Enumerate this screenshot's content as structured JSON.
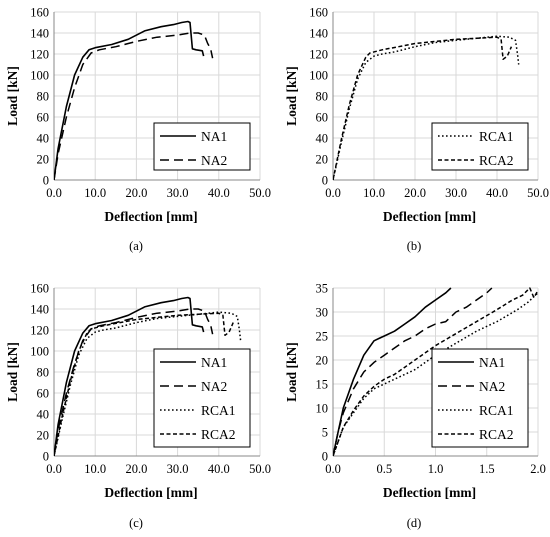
{
  "chart_data": [
    {
      "type": "line",
      "caption": "(a)",
      "xlabel": "Deflection [mm]",
      "ylabel": "Load [kN]",
      "xlim": [
        0,
        50
      ],
      "ylim": [
        0,
        160
      ],
      "xticks": [
        "0.0",
        "10.0",
        "20.0",
        "30.0",
        "40.0",
        "50.0"
      ],
      "yticks": [
        "0",
        "20",
        "40",
        "60",
        "80",
        "100",
        "120",
        "140",
        "160"
      ],
      "legend": "bottom-right",
      "series": [
        {
          "name": "NA1",
          "style": "solid",
          "x": [
            0,
            1,
            3,
            5,
            7,
            8.5,
            10,
            14,
            18,
            22,
            26,
            29,
            31,
            32.5,
            33,
            33.6,
            34.5,
            36,
            36.3
          ],
          "y": [
            0,
            30,
            70,
            100,
            117,
            124,
            126,
            129,
            134,
            142,
            146,
            148,
            150,
            151,
            150,
            125,
            124,
            123,
            118
          ]
        },
        {
          "name": "NA2",
          "style": "dashed",
          "x": [
            0,
            1,
            3,
            5,
            7,
            9,
            11,
            15,
            20,
            25,
            30,
            33,
            35,
            36.5,
            37.3,
            38,
            38.5
          ],
          "y": [
            0,
            25,
            60,
            88,
            110,
            121,
            124,
            127,
            132,
            136,
            138,
            140,
            140,
            138,
            130,
            125,
            116
          ]
        }
      ]
    },
    {
      "type": "line",
      "caption": "(b)",
      "xlabel": "Deflection [mm]",
      "ylabel": "Load [kN]",
      "xlim": [
        0,
        50
      ],
      "ylim": [
        0,
        160
      ],
      "xticks": [
        "0.0",
        "10.0",
        "20.0",
        "30.0",
        "40.0",
        "50.0"
      ],
      "yticks": [
        "0",
        "20",
        "40",
        "60",
        "80",
        "100",
        "120",
        "140",
        "160"
      ],
      "legend": "bottom-right",
      "series": [
        {
          "name": "RCA1",
          "style": "dotted",
          "x": [
            0,
            2,
            4,
            6,
            8,
            10,
            12,
            15,
            20,
            25,
            30,
            35,
            40,
            43,
            44.5,
            45,
            45.3
          ],
          "y": [
            0,
            35,
            68,
            96,
            112,
            118,
            120,
            122,
            127,
            131,
            133,
            135,
            137,
            136,
            133,
            120,
            110
          ]
        },
        {
          "name": "RCA2",
          "style": "short-dashed",
          "x": [
            0,
            2,
            4,
            6,
            8,
            9,
            12,
            16,
            20,
            25,
            30,
            35,
            40,
            41,
            41.5,
            42.5,
            43.5
          ],
          "y": [
            0,
            38,
            72,
            100,
            117,
            121,
            124,
            127,
            130,
            132,
            134,
            135,
            136,
            134,
            115,
            118,
            127
          ]
        }
      ]
    },
    {
      "type": "line",
      "caption": "(c)",
      "xlabel": "Deflection [mm]",
      "ylabel": "Load [kN]",
      "xlim": [
        0,
        50
      ],
      "ylim": [
        0,
        160
      ],
      "xticks": [
        "0.0",
        "10.0",
        "20.0",
        "30.0",
        "40.0",
        "50.0"
      ],
      "yticks": [
        "0",
        "20",
        "40",
        "60",
        "80",
        "100",
        "120",
        "140",
        "160"
      ],
      "legend": "bottom-right",
      "series": [
        {
          "name": "NA1",
          "style": "solid",
          "x": [
            0,
            1,
            3,
            5,
            7,
            8.5,
            10,
            14,
            18,
            22,
            26,
            29,
            31,
            32.5,
            33,
            33.6,
            34.5,
            36,
            36.3
          ],
          "y": [
            0,
            30,
            70,
            100,
            117,
            124,
            126,
            129,
            134,
            142,
            146,
            148,
            150,
            151,
            150,
            125,
            124,
            123,
            118
          ]
        },
        {
          "name": "NA2",
          "style": "dashed",
          "x": [
            0,
            1,
            3,
            5,
            7,
            9,
            11,
            15,
            20,
            25,
            30,
            33,
            35,
            36.5,
            37.3,
            38,
            38.5
          ],
          "y": [
            0,
            25,
            60,
            88,
            110,
            121,
            124,
            127,
            132,
            136,
            138,
            140,
            140,
            138,
            130,
            125,
            116
          ]
        },
        {
          "name": "RCA1",
          "style": "dotted",
          "x": [
            0,
            2,
            4,
            6,
            8,
            10,
            12,
            15,
            20,
            25,
            30,
            35,
            40,
            43,
            44.5,
            45,
            45.3
          ],
          "y": [
            0,
            35,
            68,
            96,
            112,
            118,
            120,
            122,
            127,
            131,
            133,
            135,
            137,
            136,
            133,
            120,
            110
          ]
        },
        {
          "name": "RCA2",
          "style": "short-dashed",
          "x": [
            0,
            2,
            4,
            6,
            8,
            9,
            12,
            16,
            20,
            25,
            30,
            35,
            40,
            41,
            41.5,
            42.5,
            43.5
          ],
          "y": [
            0,
            38,
            72,
            100,
            117,
            121,
            124,
            127,
            130,
            132,
            134,
            135,
            136,
            134,
            115,
            118,
            127
          ]
        }
      ]
    },
    {
      "type": "line",
      "caption": "(d)",
      "xlabel": "Deflection [mm]",
      "ylabel": "Load [kN]",
      "xlim": [
        0,
        2
      ],
      "ylim": [
        0,
        35
      ],
      "xticks": [
        "0.0",
        "0.5",
        "1.0",
        "1.5",
        "2.0"
      ],
      "yticks": [
        "0",
        "5",
        "10",
        "15",
        "20",
        "25",
        "30",
        "35"
      ],
      "legend": "bottom-right",
      "series": [
        {
          "name": "NA1",
          "style": "solid",
          "x": [
            0,
            0.05,
            0.1,
            0.2,
            0.3,
            0.4,
            0.45,
            0.5,
            0.6,
            0.7,
            0.8,
            0.9,
            1.0,
            1.1,
            1.15
          ],
          "y": [
            0,
            5,
            10,
            16,
            21,
            24,
            24.5,
            25,
            26,
            27.5,
            29,
            31,
            32.5,
            34,
            35
          ]
        },
        {
          "name": "NA2",
          "style": "dashed",
          "x": [
            0,
            0.05,
            0.1,
            0.2,
            0.3,
            0.4,
            0.5,
            0.6,
            0.7,
            0.8,
            0.9,
            1.0,
            1.1,
            1.2,
            1.3,
            1.4,
            1.5,
            1.55
          ],
          "y": [
            0,
            5,
            9,
            14,
            17.5,
            19.5,
            21,
            22.5,
            24,
            25,
            26.5,
            27.5,
            28,
            30,
            31,
            32.5,
            34,
            35
          ]
        },
        {
          "name": "RCA1",
          "style": "dotted",
          "x": [
            0,
            0.1,
            0.2,
            0.3,
            0.4,
            0.5,
            0.6,
            0.7,
            0.8,
            0.9,
            1.0,
            1.2,
            1.4,
            1.6,
            1.8,
            1.9,
            1.95,
            2.0
          ],
          "y": [
            0,
            6,
            9,
            12,
            14,
            15,
            16,
            17,
            18,
            19.5,
            21,
            23.5,
            26,
            28,
            30.5,
            32,
            33,
            34
          ]
        },
        {
          "name": "RCA2",
          "style": "short-dashed",
          "x": [
            0,
            0.1,
            0.2,
            0.3,
            0.4,
            0.5,
            0.6,
            0.7,
            0.8,
            0.9,
            1.0,
            1.2,
            1.4,
            1.6,
            1.75,
            1.85,
            1.92,
            1.96,
            2.0
          ],
          "y": [
            0,
            6,
            9.5,
            12.5,
            14.5,
            16,
            17,
            18.5,
            20,
            21.5,
            23,
            25.5,
            28,
            30.5,
            32.5,
            33.5,
            35,
            33,
            34.5
          ]
        }
      ]
    }
  ]
}
